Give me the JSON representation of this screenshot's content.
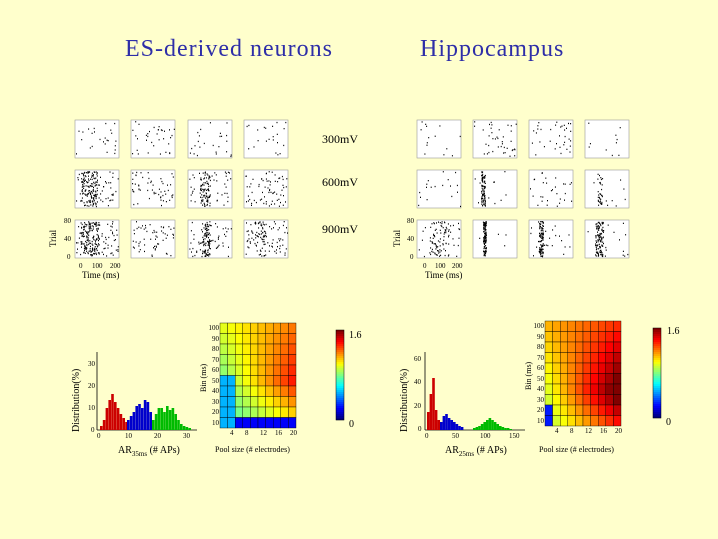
{
  "titles": {
    "left": "ES-derived neurons",
    "right": "Hippocampus"
  },
  "voltage_labels": [
    "300mV",
    "600mV",
    "900mV"
  ],
  "raster": {
    "y_axis_label": "Trial",
    "y_ticks": [
      "80",
      "40",
      "0"
    ],
    "x_ticks": [
      "0",
      "100",
      "200"
    ],
    "x_axis_label": "Time (ms)"
  },
  "left_hist": {
    "ylabel": "Distribution(%)",
    "yticks": [
      "30",
      "20",
      "10",
      "0"
    ],
    "xticks": [
      "0",
      "10",
      "20",
      "30"
    ],
    "xlabel_main": "AR",
    "xlabel_sub": "35ms",
    "xlabel_rest": " (# APs)"
  },
  "right_hist": {
    "ylabel": "Distribution(%)",
    "yticks": [
      "60",
      "40",
      "20",
      "0"
    ],
    "xticks": [
      "0",
      "50",
      "100",
      "150"
    ],
    "xlabel_main": "AR",
    "xlabel_sub": "25ms",
    "xlabel_rest": " (# APs)"
  },
  "heatmap": {
    "ylabel": "Bin (ms)",
    "yticks": [
      "100",
      "90",
      "80",
      "70",
      "60",
      "50",
      "40",
      "30",
      "20",
      "10"
    ],
    "xticks": [
      "4",
      "8",
      "12",
      "16",
      "20"
    ],
    "xlabel": "Pool size (# electrodes)"
  },
  "colorbar": {
    "max": "1.6",
    "min": "0"
  },
  "colors": {
    "title": "#2E2EA8",
    "background": "#FFFFCC",
    "hist_red": "#CC0000",
    "hist_blue": "#0000CC",
    "hist_green": "#00BB00"
  }
}
